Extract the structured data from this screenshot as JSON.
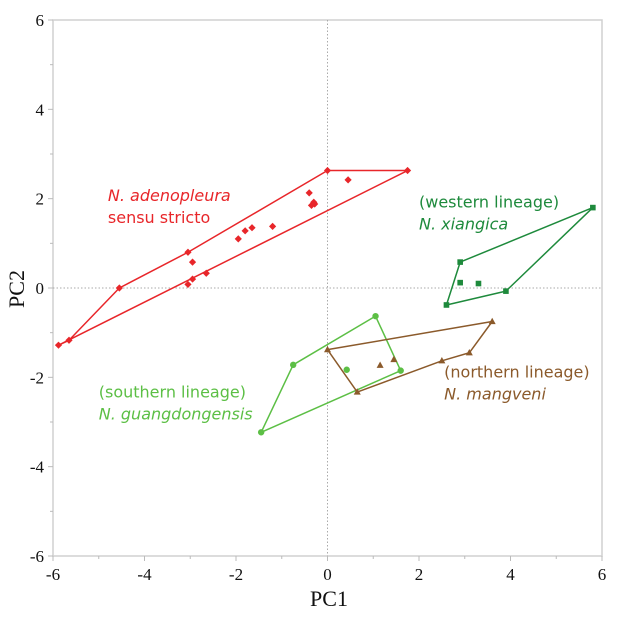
{
  "chart_data": {
    "type": "scatter",
    "title": "",
    "xlabel": "PC1",
    "ylabel": "PC2",
    "xlim": [
      -6,
      6
    ],
    "ylim": [
      -6,
      6
    ],
    "xticks": [
      "-6",
      "-4",
      "-2",
      "0",
      "2",
      "4",
      "6"
    ],
    "yticks": [
      "6",
      "4",
      "2",
      "0",
      "-2",
      "-4",
      "-6"
    ],
    "grid": "zero reference lines only (dotted)",
    "series": [
      {
        "name": "N. adenopleura sensu stricto",
        "label_lines": [
          "N. adenopleura",
          "sensu stricto"
        ],
        "color": "#e8262a",
        "marker": "diamond",
        "hull": [
          [
            0.0,
            2.63
          ],
          [
            1.75,
            2.63
          ],
          [
            -5.88,
            -1.28
          ],
          [
            -5.65,
            -1.17
          ],
          [
            -4.55,
            0.0
          ],
          [
            -3.05,
            0.8
          ],
          [
            0.0,
            2.63
          ]
        ],
        "points": [
          [
            -5.88,
            -1.28
          ],
          [
            -5.65,
            -1.17
          ],
          [
            -4.55,
            0.0
          ],
          [
            -3.05,
            0.8
          ],
          [
            -3.05,
            0.08
          ],
          [
            -2.95,
            0.2
          ],
          [
            -2.95,
            0.58
          ],
          [
            -2.65,
            0.33
          ],
          [
            -1.95,
            1.1
          ],
          [
            -1.8,
            1.28
          ],
          [
            -1.65,
            1.35
          ],
          [
            -1.2,
            1.38
          ],
          [
            -0.4,
            2.13
          ],
          [
            -0.35,
            1.85
          ],
          [
            -0.3,
            1.92
          ],
          [
            -0.28,
            1.88
          ],
          [
            0.0,
            2.63
          ],
          [
            0.45,
            2.42
          ],
          [
            1.75,
            2.63
          ]
        ]
      },
      {
        "name": "N. xiangica (western lineage)",
        "label_lines": [
          "(western lineage)",
          "N. xiangica"
        ],
        "color": "#1e8a3c",
        "marker": "square",
        "hull": [
          [
            5.8,
            1.8
          ],
          [
            2.9,
            0.58
          ],
          [
            2.6,
            -0.38
          ],
          [
            3.9,
            -0.07
          ],
          [
            5.8,
            1.8
          ]
        ],
        "points": [
          [
            5.8,
            1.8
          ],
          [
            2.9,
            0.58
          ],
          [
            2.6,
            -0.38
          ],
          [
            3.9,
            -0.07
          ],
          [
            2.9,
            0.12
          ],
          [
            3.3,
            0.1
          ]
        ]
      },
      {
        "name": "N. guangdongensis (southern lineage)",
        "label_lines": [
          "(southern lineage)",
          "N. guangdongensis"
        ],
        "color": "#5cbf45",
        "marker": "circle",
        "hull": [
          [
            1.05,
            -0.63
          ],
          [
            1.6,
            -1.85
          ],
          [
            -1.45,
            -3.23
          ],
          [
            -0.75,
            -1.72
          ],
          [
            1.05,
            -0.63
          ]
        ],
        "points": [
          [
            1.05,
            -0.63
          ],
          [
            1.6,
            -1.85
          ],
          [
            -1.45,
            -3.23
          ],
          [
            -0.75,
            -1.72
          ],
          [
            0.42,
            -1.83
          ]
        ]
      },
      {
        "name": "N. mangveni (northern lineage)",
        "label_lines": [
          "(northern lineage)",
          "N. mangveni"
        ],
        "color": "#8b5a2b",
        "marker": "triangle",
        "hull": [
          [
            3.6,
            -0.75
          ],
          [
            3.1,
            -1.45
          ],
          [
            2.5,
            -1.63
          ],
          [
            0.65,
            -2.33
          ],
          [
            0.0,
            -1.38
          ],
          [
            3.6,
            -0.75
          ]
        ],
        "points": [
          [
            3.6,
            -0.75
          ],
          [
            3.1,
            -1.45
          ],
          [
            2.5,
            -1.63
          ],
          [
            0.65,
            -2.33
          ],
          [
            0.0,
            -1.38
          ],
          [
            1.15,
            -1.73
          ],
          [
            1.45,
            -1.6
          ]
        ]
      }
    ],
    "annotations": [
      {
        "series": 0,
        "x": -4.8,
        "y": 1.95,
        "anchor": "start"
      },
      {
        "series": 1,
        "x": 2.0,
        "y": 1.8,
        "anchor": "start"
      },
      {
        "series": 2,
        "x": -5.0,
        "y": -2.45,
        "anchor": "start"
      },
      {
        "series": 3,
        "x": 2.55,
        "y": -2.0,
        "anchor": "start"
      }
    ]
  }
}
